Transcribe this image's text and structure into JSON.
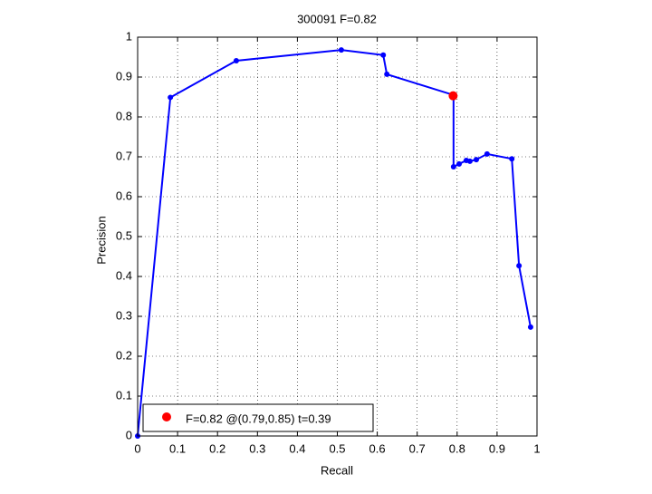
{
  "chart_data": {
    "type": "line",
    "title": "300091 F=0.82",
    "x_label": "Recall",
    "y_label": "Precision",
    "xlim": [
      0,
      1
    ],
    "ylim": [
      0,
      1
    ],
    "xticks": [
      0,
      0.1,
      0.2,
      0.3,
      0.4,
      0.5,
      0.6,
      0.7,
      0.8,
      0.9,
      1
    ],
    "yticks": [
      0,
      0.1,
      0.2,
      0.3,
      0.4,
      0.5,
      0.6,
      0.7,
      0.8,
      0.9,
      1
    ],
    "grid": true,
    "series": [
      {
        "color": "#0000ff",
        "x": [
          0,
          0.082,
          0.247,
          0.51,
          0.615,
          0.624,
          0.791,
          0.791,
          0.805,
          0.823,
          0.832,
          0.848,
          0.875,
          0.937,
          0.955,
          0.984
        ],
        "values": [
          0,
          0.849,
          0.941,
          0.968,
          0.955,
          0.907,
          0.855,
          0.675,
          0.682,
          0.691,
          0.689,
          0.693,
          0.707,
          0.695,
          0.427,
          0.273
        ]
      }
    ],
    "marker": {
      "name": "F=0.82 @(0.79,0.85) t=0.39",
      "color": "#ff0000",
      "x": 0.79,
      "y": 0.853
    }
  }
}
